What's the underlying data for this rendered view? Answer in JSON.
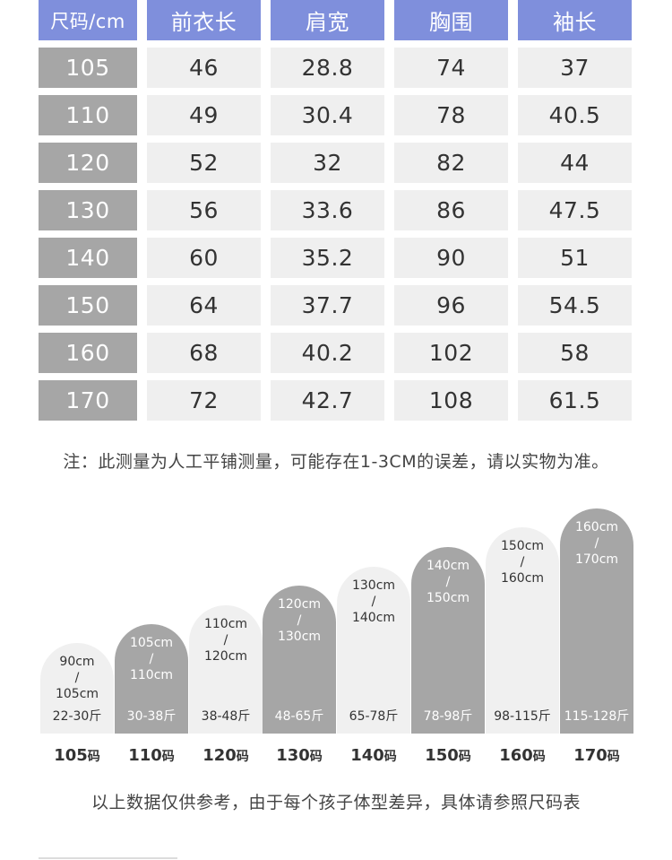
{
  "table": {
    "headers": [
      "尺码/cm",
      "前衣长",
      "肩宽",
      "胸围",
      "袖长"
    ],
    "rows": [
      [
        "105",
        "46",
        "28.8",
        "74",
        "37"
      ],
      [
        "110",
        "49",
        "30.4",
        "78",
        "40.5"
      ],
      [
        "120",
        "52",
        "32",
        "82",
        "44"
      ],
      [
        "130",
        "56",
        "33.6",
        "86",
        "47.5"
      ],
      [
        "140",
        "60",
        "35.2",
        "90",
        "51"
      ],
      [
        "150",
        "64",
        "37.7",
        "96",
        "54.5"
      ],
      [
        "160",
        "68",
        "40.2",
        "102",
        "58"
      ],
      [
        "170",
        "72",
        "42.7",
        "108",
        "61.5"
      ]
    ]
  },
  "note": "注：此测量为人工平铺测量，可能存在1-3CM的误差，请以实物为准。",
  "guide": [
    {
      "h1": "90cm",
      "sep": "/",
      "h2": "105cm",
      "weight": "22-30斤",
      "size": "105",
      "unit": "码",
      "tone": "light",
      "level": 1
    },
    {
      "h1": "105cm",
      "sep": "/",
      "h2": "110cm",
      "weight": "30-38斤",
      "size": "110",
      "unit": "码",
      "tone": "dark",
      "level": 2
    },
    {
      "h1": "110cm",
      "sep": "/",
      "h2": "120cm",
      "weight": "38-48斤",
      "size": "120",
      "unit": "码",
      "tone": "light",
      "level": 3
    },
    {
      "h1": "120cm",
      "sep": "/",
      "h2": "130cm",
      "weight": "48-65斤",
      "size": "130",
      "unit": "码",
      "tone": "dark",
      "level": 4
    },
    {
      "h1": "130cm",
      "sep": "/",
      "h2": "140cm",
      "weight": "65-78斤",
      "size": "140",
      "unit": "码",
      "tone": "light",
      "level": 5
    },
    {
      "h1": "140cm",
      "sep": "/",
      "h2": "150cm",
      "weight": "78-98斤",
      "size": "150",
      "unit": "码",
      "tone": "dark",
      "level": 6
    },
    {
      "h1": "150cm",
      "sep": "/",
      "h2": "160cm",
      "weight": "98-115斤",
      "size": "160",
      "unit": "码",
      "tone": "light",
      "level": 7
    },
    {
      "h1": "160cm",
      "sep": "/",
      "h2": "170cm",
      "weight": "115-128斤",
      "size": "170",
      "unit": "码",
      "tone": "dark",
      "level": 8
    }
  ],
  "footer": "以上数据仅供参考，由于每个孩子体型差异，具体请参照尺码表",
  "colors": {
    "header": "#7f8fdc",
    "dark": "#a6a6a6",
    "light": "#f0f0f0"
  }
}
